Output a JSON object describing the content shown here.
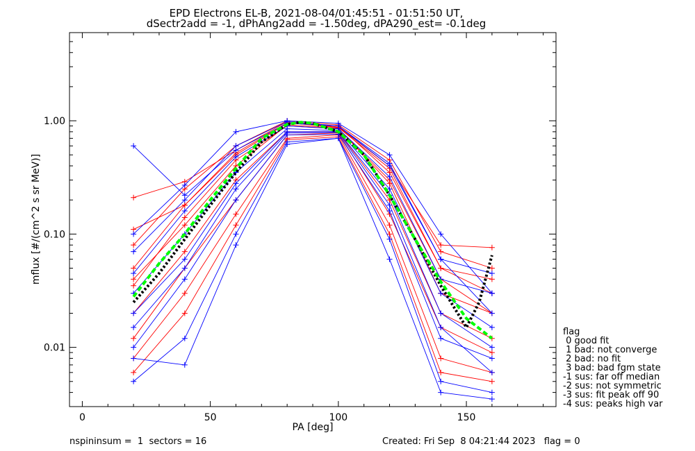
{
  "title_line1": "EPD Electrons EL-B, 2021-08-04/01:45:51 - 01:51:50 UT,",
  "title_line2": "dSectr2add = -1, dPhAng2add = -1.50deg, dPA290_est=  -0.1deg",
  "footer_left": "nspininsum =  1  sectors = 16",
  "footer_right": "Created: Fri Sep  8 04:21:44 2023   flag = 0",
  "legend": {
    "title": "flag",
    "items": [
      " 0 good fit",
      " 1 bad: not converge",
      " 2 bad: no fit",
      " 3 bad: bad fgm state",
      "-1 sus: far off median",
      "-2 sus: not symmetric",
      "-3 sus: fit peak off 90",
      "-4 sus: peaks high var"
    ]
  },
  "colors": {
    "red": "#ff0000",
    "blue": "#0000ff",
    "green": "#00ff00",
    "black": "#000000"
  },
  "chart_data": {
    "type": "line",
    "xlabel": "PA [deg]",
    "ylabel": "mflux [#/(cm^2 s sr MeV)]",
    "xlim": [
      -5,
      185
    ],
    "ylim": [
      0.003,
      6.0
    ],
    "yscale": "log",
    "xticks": [
      0,
      50,
      100,
      150
    ],
    "xticklabels": [
      "0",
      "50",
      "100",
      "150"
    ],
    "yticks": [
      0.01,
      0.1,
      1.0
    ],
    "yticklabels": [
      "0.01",
      "0.10",
      "1.00"
    ],
    "pa_bins": [
      20,
      40,
      60,
      80,
      100,
      120,
      140,
      160
    ],
    "series": [
      {
        "color": "red",
        "values": [
          0.035,
          0.14,
          0.45,
          0.9,
          0.85,
          0.3,
          0.04,
          0.02
        ]
      },
      {
        "color": "red",
        "values": [
          0.08,
          0.25,
          0.6,
          1.0,
          0.92,
          0.45,
          0.07,
          0.05
        ]
      },
      {
        "color": "red",
        "values": [
          0.02,
          0.07,
          0.3,
          0.8,
          0.8,
          0.2,
          0.02,
          0.012
        ]
      },
      {
        "color": "red",
        "values": [
          0.05,
          0.18,
          0.5,
          0.95,
          0.9,
          0.35,
          0.05,
          0.03
        ]
      },
      {
        "color": "red",
        "values": [
          0.012,
          0.05,
          0.2,
          0.75,
          0.78,
          0.15,
          0.015,
          0.009
        ]
      },
      {
        "color": "red",
        "values": [
          0.21,
          0.29,
          0.55,
          0.98,
          0.88,
          0.4,
          0.08,
          0.076
        ]
      },
      {
        "color": "red",
        "values": [
          0.008,
          0.03,
          0.15,
          0.7,
          0.75,
          0.12,
          0.008,
          0.006
        ]
      },
      {
        "color": "red",
        "values": [
          0.04,
          0.12,
          0.4,
          0.92,
          0.86,
          0.28,
          0.03,
          0.02
        ]
      },
      {
        "color": "red",
        "values": [
          0.11,
          0.18,
          0.52,
          0.96,
          0.87,
          0.38,
          0.05,
          0.04
        ]
      },
      {
        "color": "red",
        "values": [
          0.006,
          0.02,
          0.12,
          0.68,
          0.72,
          0.1,
          0.006,
          0.005
        ]
      },
      {
        "color": "blue",
        "values": [
          0.03,
          0.1,
          0.35,
          0.85,
          0.82,
          0.25,
          0.03,
          0.015
        ]
      },
      {
        "color": "blue",
        "values": [
          0.01,
          0.04,
          0.2,
          0.75,
          0.76,
          0.16,
          0.012,
          0.008
        ]
      },
      {
        "color": "blue",
        "values": [
          0.6,
          0.22,
          0.55,
          0.95,
          0.9,
          0.4,
          0.06,
          0.045
        ]
      },
      {
        "color": "blue",
        "values": [
          0.005,
          0.012,
          0.1,
          0.65,
          0.7,
          0.09,
          0.005,
          0.004
        ]
      },
      {
        "color": "blue",
        "values": [
          0.045,
          0.16,
          0.48,
          0.9,
          0.85,
          0.32,
          0.04,
          0.03
        ]
      },
      {
        "color": "blue",
        "values": [
          0.008,
          0.007,
          0.08,
          0.62,
          0.7,
          0.06,
          0.004,
          0.0035
        ]
      },
      {
        "color": "blue",
        "values": [
          0.1,
          0.27,
          0.8,
          1.0,
          0.95,
          0.5,
          0.1,
          0.03
        ]
      },
      {
        "color": "blue",
        "values": [
          0.02,
          0.06,
          0.28,
          0.8,
          0.8,
          0.22,
          0.02,
          0.01
        ]
      },
      {
        "color": "blue",
        "values": [
          0.07,
          0.2,
          0.6,
          0.98,
          0.9,
          0.42,
          0.06,
          0.02
        ]
      },
      {
        "color": "blue",
        "values": [
          0.015,
          0.05,
          0.25,
          0.78,
          0.79,
          0.18,
          0.015,
          0.006
        ]
      }
    ],
    "fit_lines": [
      {
        "color": "black",
        "style": "dotted",
        "x": [
          20,
          30,
          40,
          50,
          60,
          70,
          80,
          85,
          90,
          100,
          110,
          120,
          130,
          140,
          150,
          155,
          160
        ],
        "y": [
          0.025,
          0.045,
          0.09,
          0.18,
          0.35,
          0.65,
          0.93,
          0.97,
          0.95,
          0.8,
          0.5,
          0.22,
          0.09,
          0.035,
          0.015,
          0.025,
          0.065
        ]
      },
      {
        "color": "green",
        "style": "dashed",
        "x": [
          20,
          30,
          40,
          50,
          60,
          70,
          80,
          85,
          90,
          100,
          110,
          120,
          130,
          140,
          150,
          160
        ],
        "y": [
          0.028,
          0.055,
          0.1,
          0.2,
          0.38,
          0.7,
          0.93,
          0.97,
          0.95,
          0.8,
          0.5,
          0.22,
          0.09,
          0.038,
          0.018,
          0.012
        ]
      }
    ]
  }
}
